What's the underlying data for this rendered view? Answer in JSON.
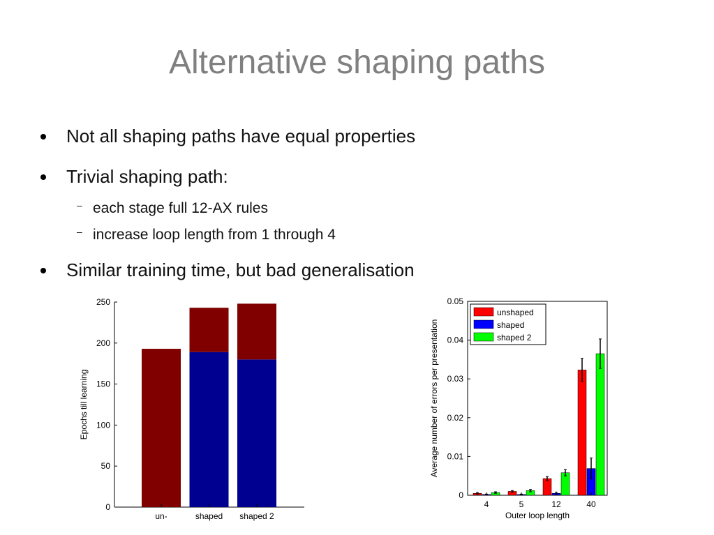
{
  "slide": {
    "title": "Alternative shaping paths",
    "bullets": [
      {
        "text": "Not all shaping paths have equal properties"
      },
      {
        "text": "Trivial shaping path:",
        "sub": [
          "each stage full 12-AX rules",
          "increase loop length from 1 through 4"
        ]
      },
      {
        "text": "Similar training time, but bad generalisation"
      }
    ]
  },
  "chart_data": [
    {
      "type": "bar",
      "stacked": true,
      "categories": [
        "un-",
        "shaped",
        "shaped 2"
      ],
      "series": [
        {
          "color": "#000090",
          "values": [
            0,
            189,
            180
          ]
        },
        {
          "color": "#800000",
          "values": [
            193,
            54,
            68
          ]
        }
      ],
      "ylabel": "Epochs till learning",
      "ylim": [
        0,
        250
      ],
      "yticks": [
        0,
        50,
        100,
        150,
        200,
        250
      ],
      "legend": "none",
      "grid": false
    },
    {
      "type": "bar",
      "categories": [
        "4",
        "5",
        "12",
        "40"
      ],
      "series": [
        {
          "name": "unshaped",
          "color": "#ff0000",
          "values": [
            0.0005,
            0.001,
            0.0043,
            0.0323
          ],
          "errors": [
            0.0002,
            0.0002,
            0.0005,
            0.003
          ]
        },
        {
          "name": "shaped",
          "color": "#0000ff",
          "values": [
            0.0002,
            0.0002,
            0.0005,
            0.0069
          ],
          "errors": [
            0.0001,
            0.0001,
            0.0003,
            0.0027
          ]
        },
        {
          "name": "shaped 2",
          "color": "#00ff00",
          "values": [
            0.0007,
            0.0012,
            0.0058,
            0.0365
          ],
          "errors": [
            0.0002,
            0.0003,
            0.0008,
            0.0038
          ]
        }
      ],
      "xlabel": "Outer loop length",
      "ylabel": "Average number of errors per presentation",
      "ylim": [
        0,
        0.05
      ],
      "yticks": [
        "0",
        "0.01",
        "0.02",
        "0.03",
        "0.04",
        "0.05"
      ],
      "legend": "top-left",
      "grid": false
    }
  ]
}
